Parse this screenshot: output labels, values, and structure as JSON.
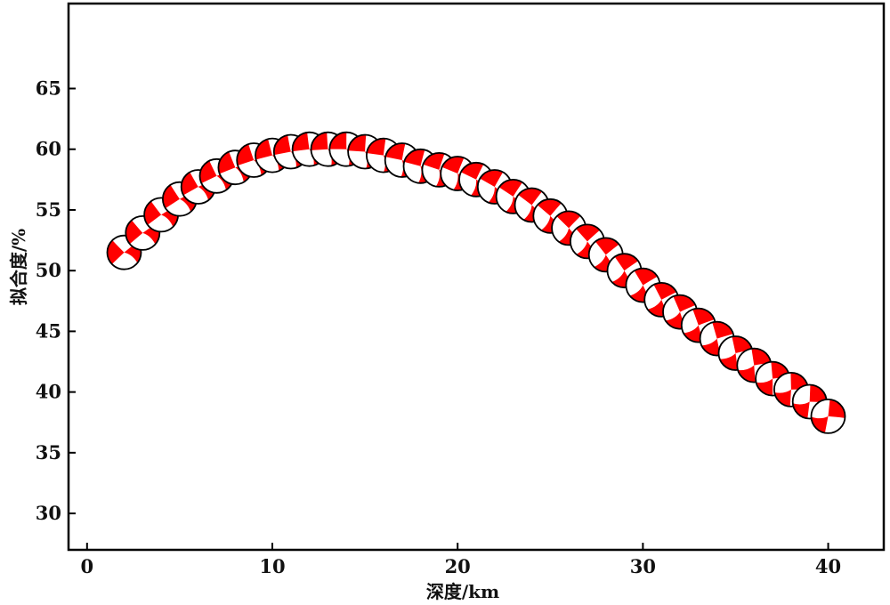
{
  "chart_data": {
    "type": "scatter",
    "marker": "focal-mechanism-beachball",
    "title": "",
    "xlabel": "深度/km",
    "ylabel": "拟合度/%",
    "xlim": [
      -1,
      43
    ],
    "ylim": [
      27,
      72
    ],
    "xticks": [
      0,
      10,
      20,
      30,
      40
    ],
    "yticks": [
      30,
      35,
      40,
      45,
      50,
      55,
      60,
      65
    ],
    "grid": false,
    "legend": "none",
    "marker_fill": "#ff0000",
    "marker_edge": "#000000",
    "x": [
      2,
      3,
      4,
      5,
      6,
      7,
      8,
      9,
      10,
      11,
      12,
      13,
      14,
      15,
      16,
      17,
      18,
      19,
      20,
      21,
      22,
      23,
      24,
      25,
      26,
      27,
      28,
      29,
      30,
      31,
      32,
      33,
      34,
      35,
      36,
      37,
      38,
      39,
      40
    ],
    "y": [
      51.5,
      53.1,
      54.6,
      55.9,
      56.9,
      57.8,
      58.5,
      59.1,
      59.5,
      59.8,
      60.0,
      60.0,
      60.0,
      59.8,
      59.5,
      59.1,
      58.6,
      58.3,
      58.0,
      57.5,
      56.9,
      56.1,
      55.4,
      54.5,
      53.5,
      52.4,
      51.3,
      50.0,
      48.8,
      47.6,
      46.6,
      45.5,
      44.4,
      43.2,
      42.2,
      41.1,
      40.2,
      39.2,
      38.0
    ]
  }
}
